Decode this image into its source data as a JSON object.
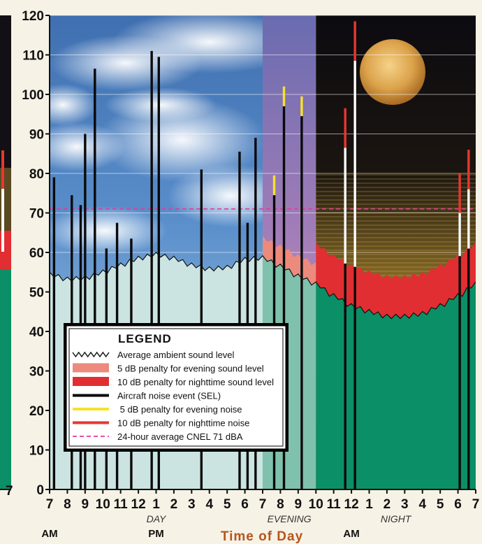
{
  "chart_data": {
    "type": "bar",
    "ylim": [
      0,
      120
    ],
    "y_ticks": [
      "0",
      "10",
      "20",
      "30",
      "40",
      "50",
      "60",
      "70",
      "80",
      "90",
      "100",
      "110",
      "120"
    ],
    "x_ticks": [
      "7",
      "8",
      "9",
      "10",
      "11",
      "12",
      "1",
      "2",
      "3",
      "4",
      "5",
      "6",
      "7",
      "8",
      "9",
      "10",
      "11",
      "12",
      "1",
      "2",
      "3",
      "4",
      "5",
      "6",
      "7"
    ],
    "x_start_hour": 7,
    "xlabel": "Time of Day",
    "periods": [
      {
        "label": "DAY",
        "start": 7,
        "end": 19
      },
      {
        "label": "EVENING",
        "start": 19,
        "end": 22
      },
      {
        "label": "NIGHT",
        "start": 22,
        "end": 31
      }
    ],
    "ampm": [
      {
        "label": "AM",
        "at": 7
      },
      {
        "label": "PM",
        "at": 13
      },
      {
        "label": "AM",
        "at": 24
      }
    ],
    "cnel_dba": 71,
    "ambient_points": [
      [
        7,
        54.5
      ],
      [
        8,
        53.2
      ],
      [
        9,
        53.5
      ],
      [
        10,
        55
      ],
      [
        11,
        56.8
      ],
      [
        12,
        58.5
      ],
      [
        13,
        59.5
      ],
      [
        14,
        58.5
      ],
      [
        15,
        56.8
      ],
      [
        16,
        55.8
      ],
      [
        17,
        56.2
      ],
      [
        18,
        58.2
      ],
      [
        19,
        58.6
      ],
      [
        20,
        56.5
      ],
      [
        21,
        54
      ],
      [
        22,
        52
      ],
      [
        23,
        49
      ],
      [
        24,
        46.5
      ],
      [
        25,
        45
      ],
      [
        26,
        43.8
      ],
      [
        27,
        43.8
      ],
      [
        28,
        44.5
      ],
      [
        29,
        46.5
      ],
      [
        30,
        49
      ],
      [
        31,
        52
      ]
    ],
    "events": [
      {
        "time": 7.25,
        "sel": 79,
        "penalty": 0
      },
      {
        "time": 8.25,
        "sel": 74.5,
        "penalty": 0
      },
      {
        "time": 8.75,
        "sel": 72,
        "penalty": 0
      },
      {
        "time": 9.0,
        "sel": 90,
        "penalty": 0
      },
      {
        "time": 9.55,
        "sel": 106.5,
        "penalty": 0
      },
      {
        "time": 10.2,
        "sel": 61,
        "penalty": 0
      },
      {
        "time": 10.8,
        "sel": 67.5,
        "penalty": 0
      },
      {
        "time": 11.6,
        "sel": 63.5,
        "penalty": 0
      },
      {
        "time": 12.75,
        "sel": 111,
        "penalty": 0
      },
      {
        "time": 13.15,
        "sel": 109.5,
        "penalty": 0
      },
      {
        "time": 15.55,
        "sel": 81,
        "penalty": 0
      },
      {
        "time": 17.7,
        "sel": 85.5,
        "penalty": 0
      },
      {
        "time": 18.15,
        "sel": 67.5,
        "penalty": 0
      },
      {
        "time": 18.6,
        "sel": 89,
        "penalty": 0
      },
      {
        "time": 19.65,
        "sel": 74.5,
        "penalty": 5
      },
      {
        "time": 20.2,
        "sel": 97,
        "penalty": 5
      },
      {
        "time": 21.2,
        "sel": 94.5,
        "penalty": 5
      },
      {
        "time": 23.65,
        "sel": 86.5,
        "penalty": 10
      },
      {
        "time": 24.2,
        "sel": 108.5,
        "penalty": 10
      },
      {
        "time": 30.1,
        "sel": 70,
        "penalty": 10
      },
      {
        "time": 30.6,
        "sel": 76,
        "penalty": 10
      }
    ],
    "colors": {
      "ambient": "#cbe4e1",
      "ambient_evening": "#7fc1ac",
      "ambient_night": "#0b8f66",
      "penalty_evening": "#ec8a7d",
      "penalty_night": "#e12e32",
      "event": "#0a0a0a",
      "event_penalty_evening": "#f7e12a",
      "event_penalty_night": "#e8372f",
      "cnel_line": "#e33a9e"
    }
  },
  "legend": {
    "title": "LEGEND",
    "items": [
      {
        "label": "Average ambient sound level",
        "swatch": "zigzag"
      },
      {
        "label": "5 dB penalty for evening sound level",
        "swatch": "box-salmon"
      },
      {
        "label": "10 dB penalty for nighttime sound level",
        "swatch": "box-red"
      },
      {
        "label": "Aircraft noise event (SEL)",
        "swatch": "line-black"
      },
      {
        "label": " 5 dB penalty for evening noise",
        "swatch": "line-yellow"
      },
      {
        "label": "10 dB penalty for nighttime noise",
        "swatch": "line-red"
      },
      {
        "label": "24-hour average CNEL 71 dBA",
        "swatch": "dash-magenta"
      }
    ]
  }
}
